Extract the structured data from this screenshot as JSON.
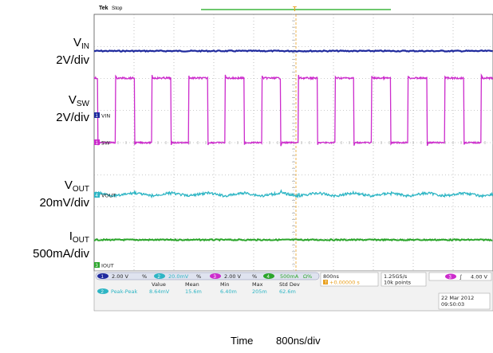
{
  "header": {
    "brand": "Tek",
    "status": "Stop"
  },
  "trigger": {
    "marker": "T"
  },
  "labels": {
    "vin": {
      "name": "V",
      "sub": "IN",
      "scale": "2V/div"
    },
    "vsw": {
      "name": "V",
      "sub": "SW",
      "scale": "2V/div"
    },
    "vout": {
      "name": "V",
      "sub": "OUT",
      "scale": "20mV/div"
    },
    "iout": {
      "name": "I",
      "sub": "OUT",
      "scale": "500mA/div"
    },
    "time": {
      "name": "Time",
      "scale": "800ns/div"
    }
  },
  "channel_markers": {
    "vin": {
      "num": "1",
      "text": "VIN"
    },
    "vsw": {
      "num": "1",
      "text": "SW"
    },
    "vout": {
      "num": "4",
      "text": "VOUT"
    },
    "iout": {
      "num": "3",
      "text": "IOUT"
    }
  },
  "readout": {
    "ch1": {
      "num": "1",
      "scale": "2.00 V",
      "sym": "%"
    },
    "ch2": {
      "num": "2",
      "scale": "20.0mV",
      "sym": "%"
    },
    "ch3": {
      "num": "3",
      "scale": "2.00 V",
      "sym": "%"
    },
    "ch4": {
      "num": "4",
      "scale": "500mA",
      "sym": "Ω%"
    },
    "timebase": "800ns",
    "trig_pos": "+0.00000 s",
    "sample_rate": "1.25GS/s",
    "record": "10k points",
    "trig": {
      "num": "3",
      "slope": "∫",
      "level": "4.00 V"
    },
    "date": "22 Mar 2012",
    "clock": "09:50:03"
  },
  "measurements": {
    "headers": [
      "Value",
      "Mean",
      "Min",
      "Max",
      "Std Dev"
    ],
    "row": {
      "num": "2",
      "name": "Peak-Peak",
      "values": [
        "8.64mV",
        "15.6m",
        "6.40m",
        "205m",
        "62.6m"
      ]
    }
  },
  "colors": {
    "vin": "#1f2a9e",
    "vsw": "#cc2bcc",
    "vout": "#2db5c4",
    "iout": "#2aa52a",
    "grid": "#9a9a9a",
    "cursor": "#6ec86e",
    "trigger": "#e8a020"
  },
  "chart_data": {
    "type": "line",
    "x_divisions": 10,
    "y_divisions": 8,
    "x_per_div": "800ns",
    "switching": {
      "cycles": 10.9,
      "high_fraction": 0.52
    },
    "series": [
      {
        "name": "VIN",
        "scale": "2V/div",
        "shape": "dc"
      },
      {
        "name": "VSW",
        "scale": "2V/div",
        "shape": "square"
      },
      {
        "name": "VOUT",
        "scale": "20mV/div",
        "shape": "ripple",
        "peak_to_peak": "8.64mV"
      },
      {
        "name": "IOUT",
        "scale": "500mA/div",
        "shape": "dc"
      }
    ]
  }
}
